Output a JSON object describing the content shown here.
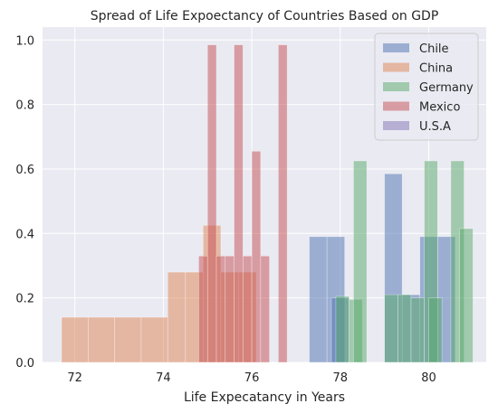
{
  "chart_data": {
    "type": "bar",
    "title": "Spread of Life Expoectancy of Countries Based on GDP",
    "xlabel": "Life Expecatancy in Years",
    "ylabel": "",
    "xlim": [
      71.27,
      81.3
    ],
    "ylim": [
      0,
      1.04
    ],
    "xticks": [
      72,
      74,
      76,
      78,
      80
    ],
    "xtick_labels": [
      "72",
      "74",
      "76",
      "78",
      "80"
    ],
    "yticks": [
      0.0,
      0.2,
      0.4,
      0.6,
      0.8,
      1.0
    ],
    "ytick_labels": [
      "0.0",
      "0.2",
      "0.4",
      "0.6",
      "0.8",
      "1.0"
    ],
    "grid": true,
    "legend_position": "top-right",
    "alpha": 0.5,
    "series": [
      {
        "name": "Chile",
        "color": "#4c72b0",
        "bins": [
          [
            77.3,
            77.7,
            0.39
          ],
          [
            77.7,
            78.1,
            0.39
          ],
          [
            77.8,
            78.2,
            0.2
          ],
          [
            79.0,
            79.4,
            0.585
          ],
          [
            79.4,
            79.8,
            0.21
          ],
          [
            79.8,
            80.2,
            0.39
          ],
          [
            80.2,
            80.6,
            0.39
          ]
        ]
      },
      {
        "name": "China",
        "color": "#dd8452",
        "bins": [
          [
            71.7,
            72.3,
            0.14
          ],
          [
            72.3,
            72.9,
            0.14
          ],
          [
            72.9,
            73.5,
            0.14
          ],
          [
            73.5,
            74.1,
            0.14
          ],
          [
            74.1,
            74.5,
            0.28
          ],
          [
            74.5,
            74.9,
            0.28
          ],
          [
            74.9,
            75.3,
            0.425
          ],
          [
            75.3,
            75.7,
            0.28
          ],
          [
            75.7,
            76.1,
            0.28
          ]
        ]
      },
      {
        "name": "Germany",
        "color": "#55a868",
        "bins": [
          [
            77.9,
            78.2,
            0.205
          ],
          [
            78.2,
            78.5,
            0.195
          ],
          [
            78.3,
            78.6,
            0.625
          ],
          [
            79.0,
            79.3,
            0.21
          ],
          [
            79.3,
            79.6,
            0.21
          ],
          [
            79.6,
            79.9,
            0.2
          ],
          [
            79.9,
            80.2,
            0.625
          ],
          [
            80.0,
            80.3,
            0.2
          ],
          [
            80.5,
            80.8,
            0.625
          ],
          [
            80.7,
            81.0,
            0.415
          ]
        ]
      },
      {
        "name": "Mexico",
        "color": "#c44e52",
        "bins": [
          [
            74.8,
            75.0,
            0.33
          ],
          [
            75.0,
            75.2,
            0.985
          ],
          [
            75.2,
            75.4,
            0.33
          ],
          [
            75.4,
            75.6,
            0.33
          ],
          [
            75.6,
            75.8,
            0.985
          ],
          [
            75.8,
            76.0,
            0.33
          ],
          [
            76.0,
            76.2,
            0.655
          ],
          [
            76.2,
            76.4,
            0.33
          ],
          [
            76.6,
            76.8,
            0.985
          ]
        ]
      },
      {
        "name": "U.S.A",
        "color": "#8172b3",
        "bins": []
      }
    ]
  }
}
